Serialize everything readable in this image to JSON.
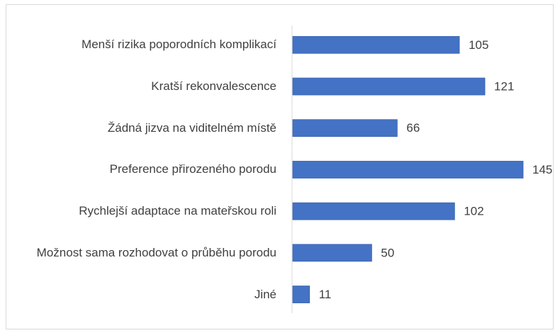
{
  "chart_data": {
    "type": "bar",
    "orientation": "horizontal",
    "categories": [
      "Menší rizika poporodních komplikací",
      "Kratší rekonvalescence",
      "Žádná jizva na viditelném místě ",
      "Preference přirozeného porodu",
      "Rychlejší adaptace na mateřskou roli",
      "Možnost sama rozhodovat o průběhu porodu",
      "Jiné"
    ],
    "values": [
      105,
      121,
      66,
      145,
      102,
      50,
      11
    ],
    "color": "#4472c4"
  }
}
